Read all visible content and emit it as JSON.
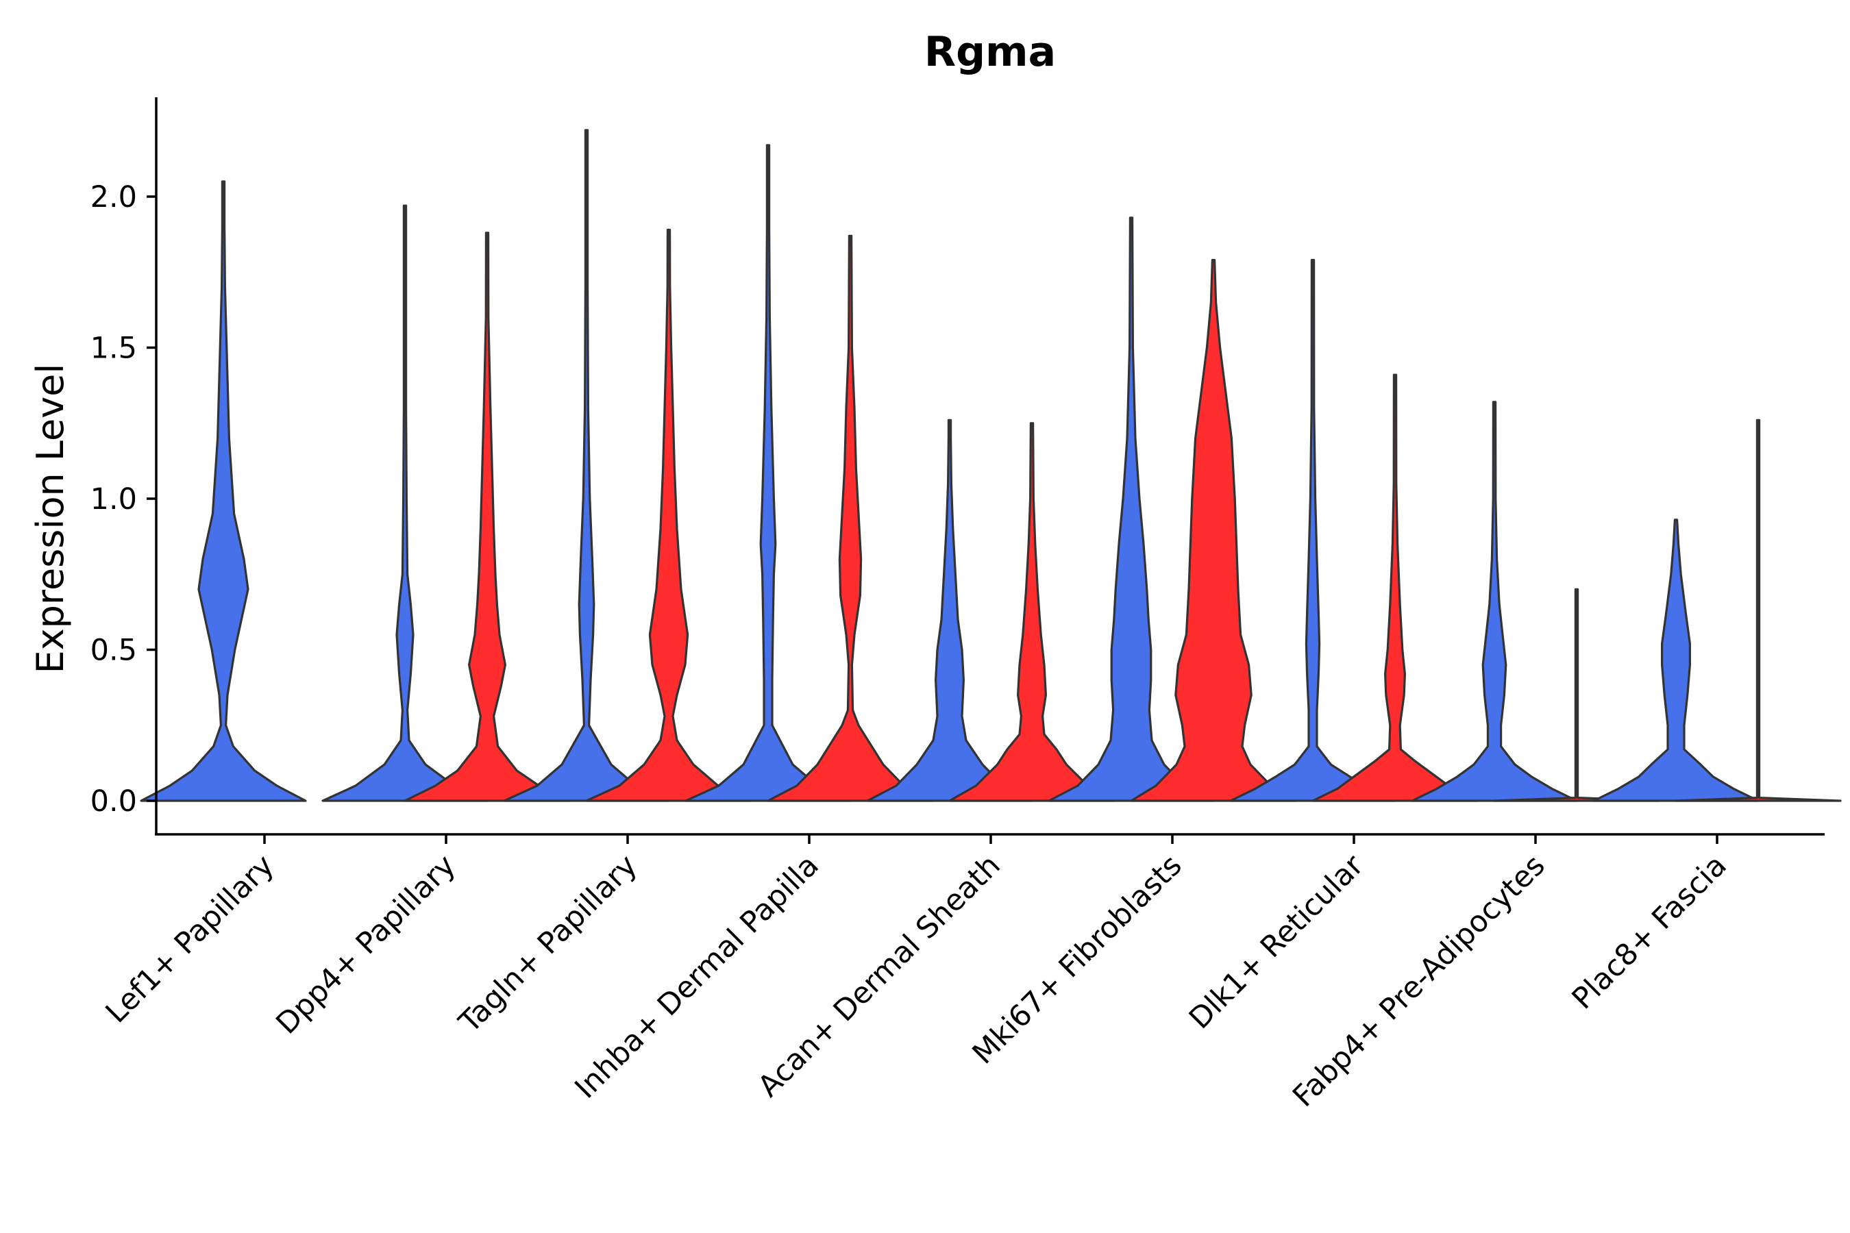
{
  "chart_data": {
    "type": "violin",
    "title": "Rgma",
    "xlabel": "",
    "ylabel": "Expression Level",
    "ylim": [
      -0.11,
      2.33
    ],
    "yticks": [
      0.0,
      0.5,
      1.0,
      1.5,
      2.0
    ],
    "ytick_labels": [
      "0.0",
      "0.5",
      "1.0",
      "1.5",
      "2.0"
    ],
    "colors": {
      "group_a": "#4671ea",
      "group_b": "#ff2d2d",
      "outline": "#333333"
    },
    "categories": [
      "Lef1+ Papillary",
      "Dpp4+ Papillary",
      "Tagln+ Papillary",
      "Inhba+ Dermal Papilla",
      "Acan+ Dermal Sheath",
      "Mki67+ Fibroblasts",
      "Dlk1+ Reticular",
      "Fabp4+ Pre-Adipocytes",
      "Plac8+ Fascia"
    ],
    "series": [
      {
        "category": "Lef1+ Papillary",
        "group": "group_a",
        "max": 2.05,
        "profile": [
          [
            0.0,
            1.0
          ],
          [
            0.05,
            0.65
          ],
          [
            0.1,
            0.38
          ],
          [
            0.18,
            0.12
          ],
          [
            0.25,
            0.03
          ],
          [
            0.35,
            0.05
          ],
          [
            0.5,
            0.14
          ],
          [
            0.6,
            0.22
          ],
          [
            0.7,
            0.3
          ],
          [
            0.8,
            0.25
          ],
          [
            0.95,
            0.13
          ],
          [
            1.2,
            0.07
          ],
          [
            1.5,
            0.04
          ],
          [
            1.7,
            0.02
          ],
          [
            1.9,
            0.008
          ],
          [
            2.05,
            0.0
          ]
        ]
      },
      {
        "category": "Dpp4+ Papillary",
        "group": "group_a",
        "max": 1.97,
        "profile": [
          [
            0.0,
            1.0
          ],
          [
            0.05,
            0.6
          ],
          [
            0.12,
            0.25
          ],
          [
            0.2,
            0.05
          ],
          [
            0.3,
            0.03
          ],
          [
            0.42,
            0.07
          ],
          [
            0.55,
            0.1
          ],
          [
            0.65,
            0.07
          ],
          [
            0.75,
            0.03
          ],
          [
            1.0,
            0.02
          ],
          [
            1.3,
            0.012
          ],
          [
            1.6,
            0.006
          ],
          [
            1.97,
            0.0
          ]
        ]
      },
      {
        "category": "Dpp4+ Papillary",
        "group": "group_b",
        "max": 1.88,
        "profile": [
          [
            0.0,
            1.0
          ],
          [
            0.05,
            0.63
          ],
          [
            0.1,
            0.36
          ],
          [
            0.18,
            0.13
          ],
          [
            0.28,
            0.08
          ],
          [
            0.38,
            0.17
          ],
          [
            0.45,
            0.22
          ],
          [
            0.55,
            0.15
          ],
          [
            0.65,
            0.12
          ],
          [
            0.75,
            0.1
          ],
          [
            0.9,
            0.08
          ],
          [
            1.1,
            0.06
          ],
          [
            1.3,
            0.04
          ],
          [
            1.6,
            0.015
          ],
          [
            1.88,
            0.0
          ]
        ]
      },
      {
        "category": "Tagln+ Papillary",
        "group": "group_a",
        "max": 2.22,
        "profile": [
          [
            0.0,
            1.0
          ],
          [
            0.05,
            0.6
          ],
          [
            0.12,
            0.3
          ],
          [
            0.25,
            0.03
          ],
          [
            0.4,
            0.05
          ],
          [
            0.55,
            0.08
          ],
          [
            0.65,
            0.09
          ],
          [
            0.8,
            0.07
          ],
          [
            1.0,
            0.04
          ],
          [
            1.3,
            0.02
          ],
          [
            1.7,
            0.008
          ],
          [
            2.22,
            0.0
          ]
        ]
      },
      {
        "category": "Tagln+ Papillary",
        "group": "group_b",
        "max": 1.89,
        "profile": [
          [
            0.0,
            1.0
          ],
          [
            0.05,
            0.6
          ],
          [
            0.12,
            0.3
          ],
          [
            0.2,
            0.1
          ],
          [
            0.28,
            0.05
          ],
          [
            0.35,
            0.1
          ],
          [
            0.45,
            0.2
          ],
          [
            0.55,
            0.23
          ],
          [
            0.7,
            0.15
          ],
          [
            0.9,
            0.1
          ],
          [
            1.1,
            0.07
          ],
          [
            1.3,
            0.05
          ],
          [
            1.5,
            0.03
          ],
          [
            1.7,
            0.015
          ],
          [
            1.89,
            0.0
          ]
        ]
      },
      {
        "category": "Inhba+ Dermal Papilla",
        "group": "group_a",
        "max": 2.17,
        "profile": [
          [
            0.0,
            1.0
          ],
          [
            0.05,
            0.6
          ],
          [
            0.12,
            0.3
          ],
          [
            0.25,
            0.05
          ],
          [
            0.4,
            0.05
          ],
          [
            0.6,
            0.06
          ],
          [
            0.75,
            0.07
          ],
          [
            0.85,
            0.09
          ],
          [
            1.0,
            0.07
          ],
          [
            1.3,
            0.04
          ],
          [
            1.6,
            0.02
          ],
          [
            1.9,
            0.008
          ],
          [
            2.17,
            0.0
          ]
        ]
      },
      {
        "category": "Inhba+ Dermal Papilla",
        "group": "group_b",
        "max": 1.87,
        "profile": [
          [
            0.0,
            1.0
          ],
          [
            0.05,
            0.65
          ],
          [
            0.12,
            0.4
          ],
          [
            0.25,
            0.1
          ],
          [
            0.3,
            0.03
          ],
          [
            0.45,
            0.02
          ],
          [
            0.55,
            0.05
          ],
          [
            0.68,
            0.12
          ],
          [
            0.8,
            0.13
          ],
          [
            0.95,
            0.1
          ],
          [
            1.1,
            0.07
          ],
          [
            1.3,
            0.05
          ],
          [
            1.5,
            0.02
          ],
          [
            1.87,
            0.0
          ]
        ]
      },
      {
        "category": "Acan+ Dermal Sheath",
        "group": "group_a",
        "max": 1.26,
        "profile": [
          [
            0.0,
            1.0
          ],
          [
            0.05,
            0.65
          ],
          [
            0.12,
            0.4
          ],
          [
            0.2,
            0.2
          ],
          [
            0.28,
            0.15
          ],
          [
            0.4,
            0.17
          ],
          [
            0.5,
            0.15
          ],
          [
            0.6,
            0.1
          ],
          [
            0.75,
            0.07
          ],
          [
            0.9,
            0.04
          ],
          [
            1.05,
            0.02
          ],
          [
            1.2,
            0.01
          ],
          [
            1.26,
            0.0
          ]
        ]
      },
      {
        "category": "Acan+ Dermal Sheath",
        "group": "group_b",
        "max": 1.25,
        "profile": [
          [
            0.0,
            1.0
          ],
          [
            0.05,
            0.68
          ],
          [
            0.12,
            0.42
          ],
          [
            0.17,
            0.3
          ],
          [
            0.22,
            0.15
          ],
          [
            0.28,
            0.13
          ],
          [
            0.35,
            0.17
          ],
          [
            0.45,
            0.15
          ],
          [
            0.55,
            0.11
          ],
          [
            0.7,
            0.07
          ],
          [
            0.85,
            0.04
          ],
          [
            1.0,
            0.02
          ],
          [
            1.25,
            0.0
          ]
        ]
      },
      {
        "category": "Mki67+ Fibroblasts",
        "group": "group_a",
        "max": 1.93,
        "profile": [
          [
            0.0,
            1.0
          ],
          [
            0.05,
            0.65
          ],
          [
            0.12,
            0.4
          ],
          [
            0.2,
            0.25
          ],
          [
            0.3,
            0.22
          ],
          [
            0.4,
            0.24
          ],
          [
            0.5,
            0.24
          ],
          [
            0.6,
            0.21
          ],
          [
            0.7,
            0.19
          ],
          [
            0.85,
            0.15
          ],
          [
            1.0,
            0.1
          ],
          [
            1.2,
            0.05
          ],
          [
            1.5,
            0.02
          ],
          [
            1.93,
            0.0
          ]
        ]
      },
      {
        "category": "Mki67+ Fibroblasts",
        "group": "group_b",
        "max": 1.79,
        "profile": [
          [
            0.0,
            1.0
          ],
          [
            0.05,
            0.7
          ],
          [
            0.12,
            0.45
          ],
          [
            0.18,
            0.35
          ],
          [
            0.25,
            0.38
          ],
          [
            0.35,
            0.46
          ],
          [
            0.45,
            0.43
          ],
          [
            0.55,
            0.33
          ],
          [
            0.7,
            0.3
          ],
          [
            0.85,
            0.28
          ],
          [
            1.0,
            0.26
          ],
          [
            1.2,
            0.22
          ],
          [
            1.35,
            0.15
          ],
          [
            1.5,
            0.08
          ],
          [
            1.65,
            0.03
          ],
          [
            1.79,
            0.0
          ]
        ]
      },
      {
        "category": "Dlk1+ Reticular",
        "group": "group_a",
        "max": 1.79,
        "profile": [
          [
            0.0,
            1.0
          ],
          [
            0.04,
            0.7
          ],
          [
            0.08,
            0.45
          ],
          [
            0.12,
            0.22
          ],
          [
            0.18,
            0.05
          ],
          [
            0.3,
            0.05
          ],
          [
            0.42,
            0.07
          ],
          [
            0.52,
            0.08
          ],
          [
            0.62,
            0.07
          ],
          [
            0.8,
            0.05
          ],
          [
            1.0,
            0.03
          ],
          [
            1.3,
            0.015
          ],
          [
            1.79,
            0.0
          ]
        ]
      },
      {
        "category": "Dlk1+ Reticular",
        "group": "group_b",
        "max": 1.41,
        "profile": [
          [
            0.0,
            1.0
          ],
          [
            0.04,
            0.7
          ],
          [
            0.08,
            0.5
          ],
          [
            0.13,
            0.25
          ],
          [
            0.17,
            0.07
          ],
          [
            0.25,
            0.06
          ],
          [
            0.35,
            0.11
          ],
          [
            0.42,
            0.12
          ],
          [
            0.5,
            0.09
          ],
          [
            0.65,
            0.06
          ],
          [
            0.85,
            0.03
          ],
          [
            1.05,
            0.015
          ],
          [
            1.41,
            0.0
          ]
        ]
      },
      {
        "category": "Fabp4+ Pre-Adipocytes",
        "group": "group_a",
        "max": 1.32,
        "profile": [
          [
            0.0,
            1.0
          ],
          [
            0.04,
            0.7
          ],
          [
            0.08,
            0.45
          ],
          [
            0.12,
            0.25
          ],
          [
            0.18,
            0.08
          ],
          [
            0.25,
            0.08
          ],
          [
            0.35,
            0.12
          ],
          [
            0.45,
            0.14
          ],
          [
            0.55,
            0.1
          ],
          [
            0.65,
            0.06
          ],
          [
            0.8,
            0.03
          ],
          [
            1.0,
            0.015
          ],
          [
            1.32,
            0.0
          ]
        ]
      },
      {
        "category": "Fabp4+ Pre-Adipocytes",
        "group": "group_b",
        "max": 0.7,
        "profile": [
          [
            0.0,
            1.0
          ],
          [
            0.01,
            0.01
          ],
          [
            0.7,
            0.0
          ]
        ]
      },
      {
        "category": "Plac8+ Fascia",
        "group": "group_a",
        "max": 0.93,
        "profile": [
          [
            0.0,
            1.0
          ],
          [
            0.04,
            0.7
          ],
          [
            0.08,
            0.45
          ],
          [
            0.12,
            0.3
          ],
          [
            0.17,
            0.1
          ],
          [
            0.25,
            0.1
          ],
          [
            0.35,
            0.14
          ],
          [
            0.45,
            0.17
          ],
          [
            0.52,
            0.17
          ],
          [
            0.62,
            0.12
          ],
          [
            0.75,
            0.06
          ],
          [
            0.85,
            0.03
          ],
          [
            0.93,
            0.0
          ]
        ]
      },
      {
        "category": "Plac8+ Fascia",
        "group": "group_b",
        "max": 1.26,
        "profile": [
          [
            0.0,
            1.0
          ],
          [
            0.01,
            0.01
          ],
          [
            1.26,
            0.0
          ]
        ]
      }
    ]
  }
}
